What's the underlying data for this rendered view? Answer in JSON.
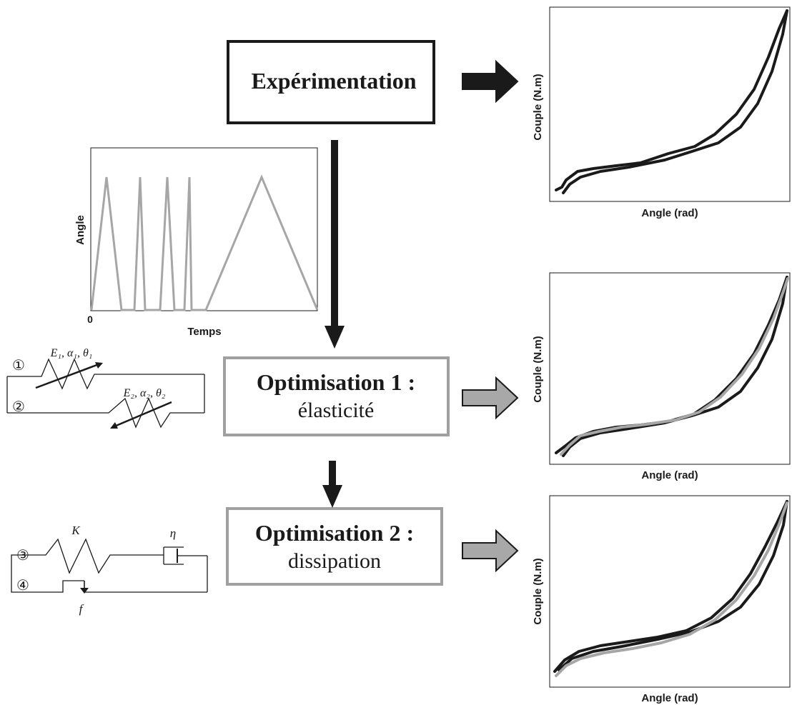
{
  "steps": {
    "experiment": {
      "title": "Expérimentation"
    },
    "opt1": {
      "title": "Optimisation 1 :",
      "subtitle": "élasticité"
    },
    "opt2": {
      "title": "Optimisation 2 :",
      "subtitle": "dissipation"
    }
  },
  "protocol_plot": {
    "ylabel": "Angle",
    "xlabel": "Temps",
    "origin_label": "0"
  },
  "result_plots": {
    "ylabel": "Couple (N.m)",
    "xlabel": "Angle (rad)"
  },
  "model1": {
    "branch1_marker": "①",
    "branch2_marker": "②",
    "branch1_params": "E₁, α₁, θ₁",
    "branch2_params": "E₂, α₂, θ₂"
  },
  "model2": {
    "branch3_marker": "③",
    "branch4_marker": "④",
    "spring_param": "K",
    "damper_param": "η",
    "friction_param": "f"
  },
  "colors": {
    "black": "#1a1a1a",
    "gray_frame": "#a0a0a0",
    "gray_arrow_fill": "#a8a8a8",
    "gray_curve": "#a6a6a6"
  }
}
